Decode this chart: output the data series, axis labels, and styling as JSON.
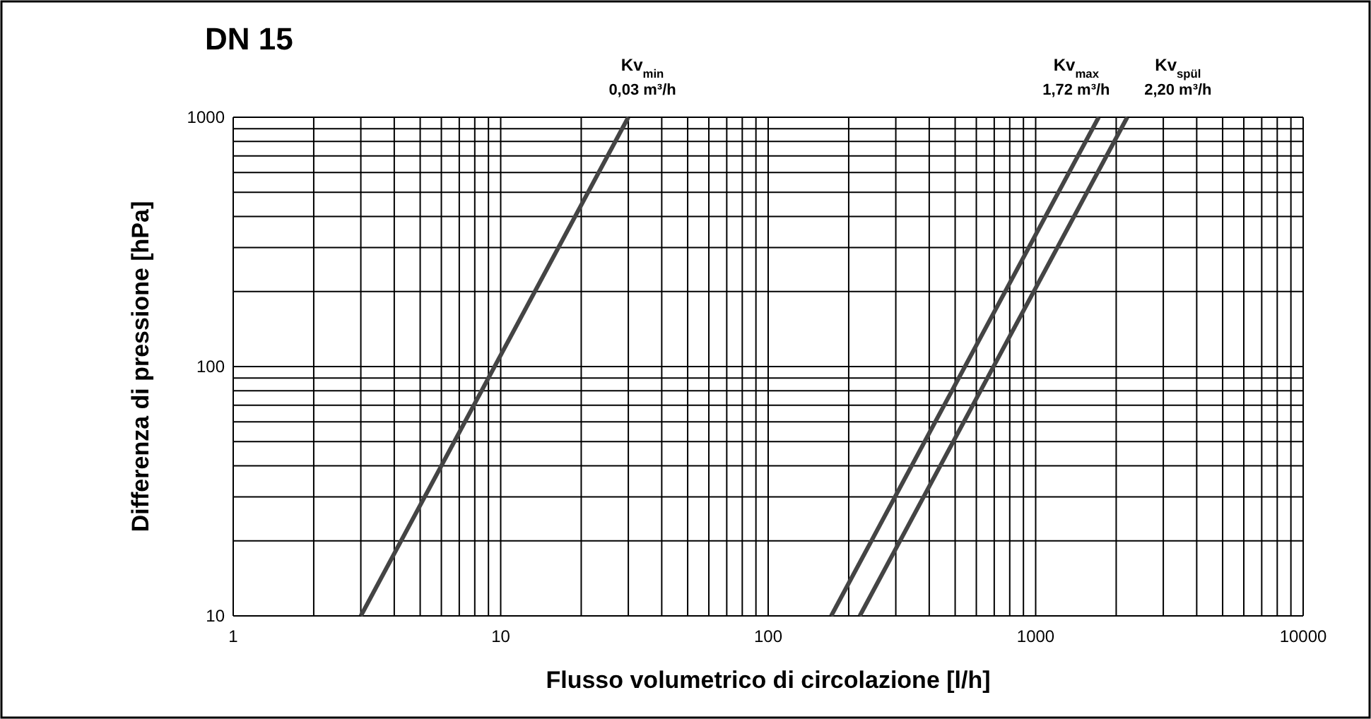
{
  "chart_data": {
    "type": "line",
    "title": "DN 15",
    "xlabel": "Flusso volumetrico di circolazione [l/h]",
    "ylabel": "Differenza di pressione [hPa]",
    "log": "xy",
    "grid": true,
    "line_style": "solid",
    "marker": "none",
    "xlim": [
      1,
      10000
    ],
    "ylim": [
      10,
      1000
    ],
    "xticks": [
      1,
      {
        "value": 2,
        "label": null
      },
      {
        "value": 3,
        "label": null
      },
      {
        "value": 4,
        "label": null
      },
      {
        "value": 5,
        "label": null
      },
      {
        "value": 6,
        "label": null
      },
      {
        "value": 7,
        "label": null
      },
      {
        "value": 8,
        "label": null
      },
      {
        "value": 9,
        "label": null
      },
      10,
      {
        "value": 20,
        "label": null
      },
      {
        "value": 30,
        "label": null
      },
      {
        "value": 40,
        "label": null
      },
      {
        "value": 50,
        "label": null
      },
      {
        "value": 60,
        "label": null
      },
      {
        "value": 70,
        "label": null
      },
      {
        "value": 80,
        "label": null
      },
      {
        "value": 90,
        "label": null
      },
      100,
      {
        "value": 200,
        "label": null
      },
      {
        "value": 300,
        "label": null
      },
      {
        "value": 400,
        "label": null
      },
      {
        "value": 500,
        "label": null
      },
      {
        "value": 600,
        "label": null
      },
      {
        "value": 700,
        "label": null
      },
      {
        "value": 800,
        "label": null
      },
      {
        "value": 900,
        "label": null
      },
      1000,
      {
        "value": 2000,
        "label": null
      },
      {
        "value": 3000,
        "label": null
      },
      {
        "value": 4000,
        "label": null
      },
      {
        "value": 5000,
        "label": null
      },
      {
        "value": 6000,
        "label": null
      },
      {
        "value": 7000,
        "label": null
      },
      {
        "value": 8000,
        "label": null
      },
      {
        "value": 9000,
        "label": null
      },
      10000
    ],
    "yticks": [
      10,
      {
        "value": 20,
        "label": null
      },
      {
        "value": 30,
        "label": null
      },
      {
        "value": 40,
        "label": null
      },
      {
        "value": 50,
        "label": null
      },
      {
        "value": 60,
        "label": null
      },
      {
        "value": 70,
        "label": null
      },
      {
        "value": 80,
        "label": null
      },
      {
        "value": 90,
        "label": null
      },
      100,
      {
        "value": 200,
        "label": null
      },
      {
        "value": 300,
        "label": null
      },
      {
        "value": 400,
        "label": null
      },
      {
        "value": 500,
        "label": null
      },
      {
        "value": 600,
        "label": null
      },
      {
        "value": 700,
        "label": null
      },
      {
        "value": 800,
        "label": null
      },
      {
        "value": 900,
        "label": null
      },
      1000
    ],
    "series": [
      {
        "name": "Kv$_{min}$",
        "color": "#444444",
        "x": [
          3,
          30
        ],
        "values": [
          10,
          1000
        ]
      },
      {
        "name": "Kv$_{max}$",
        "color": "#444444",
        "x": [
          172,
          1720
        ],
        "values": [
          10,
          1000
        ]
      },
      {
        "name": "Kv$_{spül}$",
        "color": "#444444",
        "x": [
          220,
          2200
        ],
        "values": [
          10,
          1000
        ]
      }
    ],
    "annotations": [
      {
        "text": "0,03 m³/h",
        "x": 30,
        "y": 1000
      },
      {
        "text": "1,72 m³/h",
        "x": 1720,
        "y": 1000
      },
      {
        "text": "2,20 m³/h",
        "x": 2200,
        "y": 1000
      }
    ]
  }
}
